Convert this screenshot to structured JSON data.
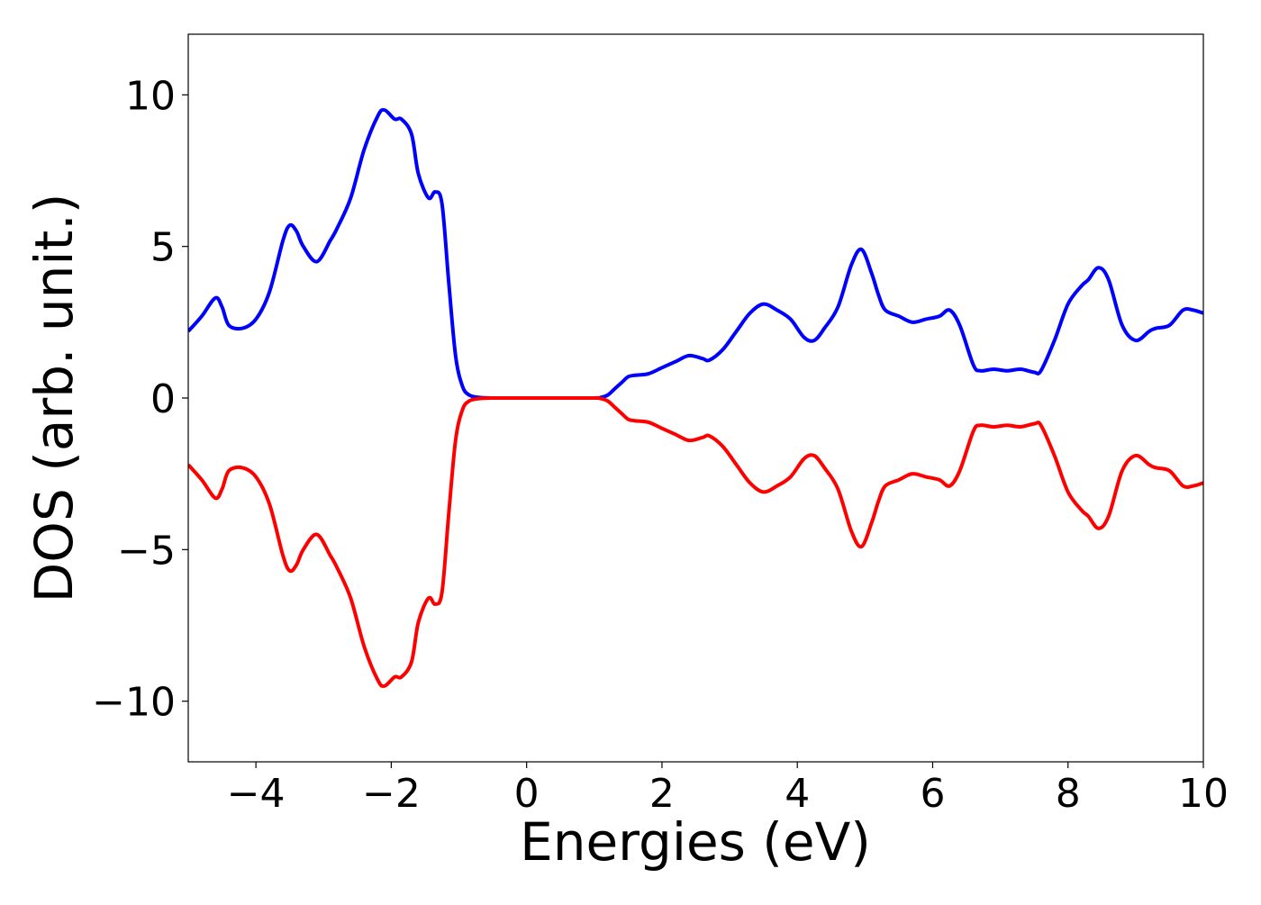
{
  "chart_data": {
    "type": "line",
    "title": "",
    "xlabel": "Energies (eV)",
    "ylabel": "DOS (arb. unit.)",
    "xlim": [
      -5,
      10
    ],
    "ylim": [
      -12,
      12
    ],
    "x_ticks": [
      -4,
      -2,
      0,
      2,
      4,
      6,
      8,
      10
    ],
    "x_tick_labels": [
      "−4",
      "−2",
      "0",
      "2",
      "4",
      "6",
      "8",
      "10"
    ],
    "y_ticks": [
      -10,
      -5,
      0,
      5,
      10
    ],
    "y_tick_labels": [
      "−10",
      "−5",
      "0",
      "5",
      "10"
    ],
    "grid": false,
    "legend": "none",
    "series": [
      {
        "color": "#0000ff",
        "x": [
          -5.0,
          -4.8,
          -4.6,
          -4.5,
          -4.4,
          -4.2,
          -4.0,
          -3.8,
          -3.6,
          -3.5,
          -3.4,
          -3.3,
          -3.1,
          -2.9,
          -2.8,
          -2.6,
          -2.4,
          -2.2,
          -2.1,
          -1.95,
          -1.85,
          -1.7,
          -1.6,
          -1.45,
          -1.35,
          -1.25,
          -1.15,
          -1.05,
          -0.95,
          -0.85,
          -0.7,
          -0.5,
          0.0,
          0.5,
          1.0,
          1.1,
          1.2,
          1.3,
          1.4,
          1.5,
          1.6,
          1.8,
          2.0,
          2.2,
          2.4,
          2.6,
          2.7,
          2.9,
          3.1,
          3.3,
          3.5,
          3.7,
          3.9,
          4.1,
          4.25,
          4.4,
          4.6,
          4.8,
          4.95,
          5.1,
          5.2,
          5.3,
          5.5,
          5.7,
          5.9,
          6.1,
          6.25,
          6.4,
          6.6,
          6.7,
          6.9,
          7.1,
          7.3,
          7.5,
          7.6,
          7.8,
          8.0,
          8.2,
          8.3,
          8.45,
          8.6,
          8.8,
          9.0,
          9.2,
          9.3,
          9.5,
          9.7,
          9.85,
          10.0
        ],
        "y": [
          2.2,
          2.7,
          3.3,
          3.0,
          2.4,
          2.3,
          2.6,
          3.5,
          5.2,
          5.7,
          5.5,
          5.0,
          4.5,
          5.2,
          5.6,
          6.6,
          8.2,
          9.3,
          9.5,
          9.2,
          9.2,
          8.7,
          7.4,
          6.6,
          6.8,
          6.4,
          3.8,
          1.4,
          0.4,
          0.1,
          0.02,
          0.0,
          0.0,
          0.0,
          0.0,
          0.02,
          0.1,
          0.3,
          0.5,
          0.7,
          0.75,
          0.8,
          1.0,
          1.2,
          1.4,
          1.3,
          1.25,
          1.6,
          2.2,
          2.8,
          3.1,
          2.9,
          2.6,
          2.0,
          1.9,
          2.3,
          3.0,
          4.4,
          4.9,
          4.1,
          3.4,
          2.9,
          2.7,
          2.5,
          2.6,
          2.7,
          2.9,
          2.4,
          1.1,
          0.9,
          0.95,
          0.9,
          0.95,
          0.85,
          0.9,
          1.9,
          3.1,
          3.7,
          3.9,
          4.3,
          3.9,
          2.4,
          1.9,
          2.2,
          2.3,
          2.4,
          2.9,
          2.9,
          2.8
        ]
      },
      {
        "color": "#ff0000",
        "x": [
          -5.0,
          -4.8,
          -4.6,
          -4.5,
          -4.4,
          -4.2,
          -4.0,
          -3.8,
          -3.6,
          -3.5,
          -3.4,
          -3.3,
          -3.1,
          -2.9,
          -2.8,
          -2.6,
          -2.4,
          -2.2,
          -2.1,
          -1.95,
          -1.85,
          -1.7,
          -1.6,
          -1.45,
          -1.35,
          -1.25,
          -1.15,
          -1.05,
          -0.95,
          -0.85,
          -0.7,
          -0.5,
          0.0,
          0.5,
          1.0,
          1.1,
          1.2,
          1.3,
          1.4,
          1.5,
          1.6,
          1.8,
          2.0,
          2.2,
          2.4,
          2.6,
          2.7,
          2.9,
          3.1,
          3.3,
          3.5,
          3.7,
          3.9,
          4.1,
          4.25,
          4.4,
          4.6,
          4.8,
          4.95,
          5.1,
          5.2,
          5.3,
          5.5,
          5.7,
          5.9,
          6.1,
          6.25,
          6.4,
          6.6,
          6.7,
          6.9,
          7.1,
          7.3,
          7.5,
          7.6,
          7.8,
          8.0,
          8.2,
          8.3,
          8.45,
          8.6,
          8.8,
          9.0,
          9.2,
          9.3,
          9.5,
          9.7,
          9.85,
          10.0
        ],
        "y": [
          -2.2,
          -2.7,
          -3.3,
          -3.0,
          -2.4,
          -2.3,
          -2.6,
          -3.5,
          -5.2,
          -5.7,
          -5.5,
          -5.0,
          -4.5,
          -5.2,
          -5.6,
          -6.6,
          -8.2,
          -9.3,
          -9.5,
          -9.2,
          -9.2,
          -8.7,
          -7.4,
          -6.6,
          -6.8,
          -6.4,
          -3.8,
          -1.4,
          -0.4,
          -0.1,
          -0.02,
          0.0,
          0.0,
          0.0,
          0.0,
          -0.02,
          -0.1,
          -0.3,
          -0.5,
          -0.7,
          -0.75,
          -0.8,
          -1.0,
          -1.2,
          -1.4,
          -1.3,
          -1.25,
          -1.6,
          -2.2,
          -2.8,
          -3.1,
          -2.9,
          -2.6,
          -2.0,
          -1.9,
          -2.3,
          -3.0,
          -4.4,
          -4.9,
          -4.1,
          -3.4,
          -2.9,
          -2.7,
          -2.5,
          -2.6,
          -2.7,
          -2.9,
          -2.4,
          -1.1,
          -0.9,
          -0.95,
          -0.9,
          -0.95,
          -0.85,
          -0.9,
          -1.9,
          -3.1,
          -3.7,
          -3.9,
          -4.3,
          -3.9,
          -2.4,
          -1.9,
          -2.2,
          -2.3,
          -2.4,
          -2.9,
          -2.9,
          -2.8
        ]
      }
    ]
  }
}
